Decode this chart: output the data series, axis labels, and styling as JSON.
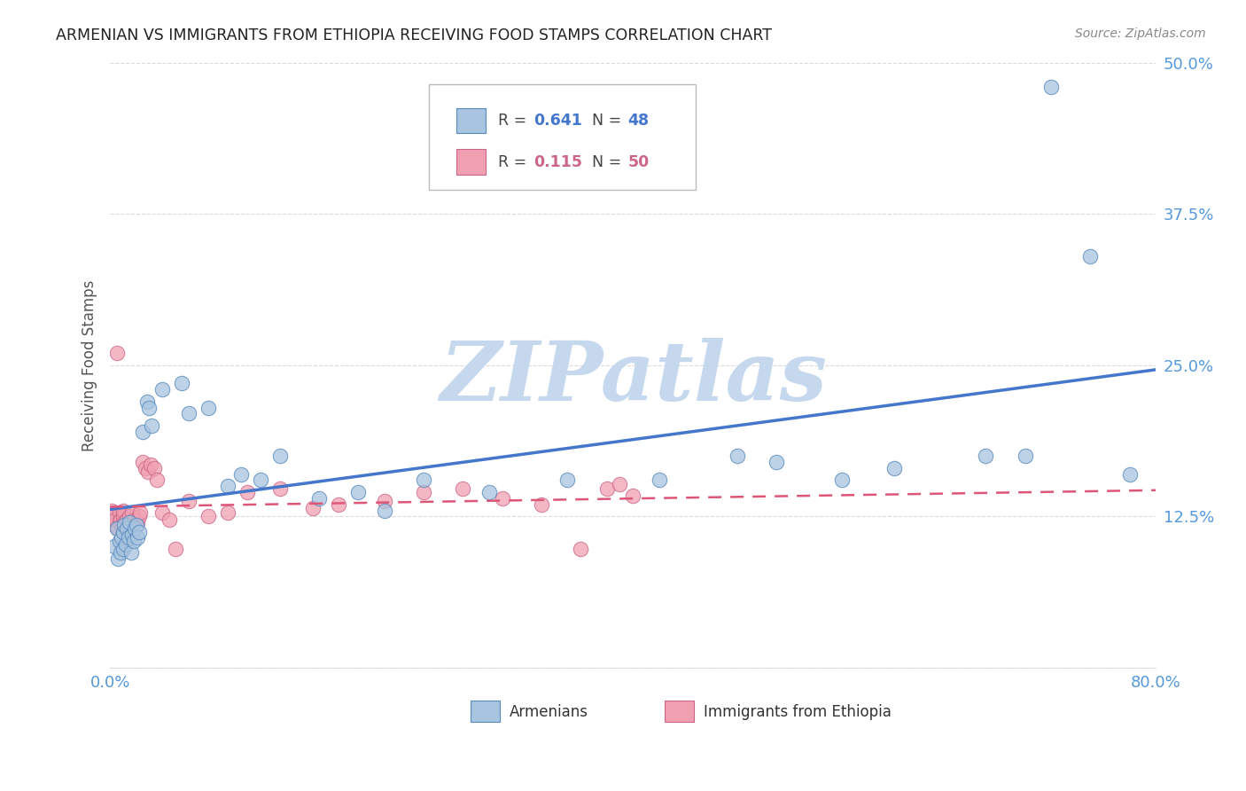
{
  "title": "ARMENIAN VS IMMIGRANTS FROM ETHIOPIA RECEIVING FOOD STAMPS CORRELATION CHART",
  "source": "Source: ZipAtlas.com",
  "ylabel": "Receiving Food Stamps",
  "xlim": [
    0.0,
    0.8
  ],
  "ylim": [
    0.0,
    0.5
  ],
  "ytick_positions": [
    0.0,
    0.125,
    0.25,
    0.375,
    0.5
  ],
  "yticklabels": [
    "",
    "12.5%",
    "25.0%",
    "37.5%",
    "50.0%"
  ],
  "xtick_positions": [
    0.0,
    0.1,
    0.2,
    0.3,
    0.4,
    0.5,
    0.6,
    0.7,
    0.8
  ],
  "xticklabels_show": [
    "0.0%",
    "",
    "",
    "",
    "",
    "",
    "",
    "",
    "80.0%"
  ],
  "grid_color": "#cccccc",
  "background_color": "#ffffff",
  "blue_fill": "#a8c4e0",
  "blue_edge": "#5588bb",
  "pink_fill": "#f0a0b0",
  "pink_edge": "#cc6688",
  "blue_line": "#4477cc",
  "pink_line": "#dd5577",
  "tick_color": "#5599dd",
  "watermark_color": "#c5d8ee",
  "armenians_x": [
    0.003,
    0.005,
    0.006,
    0.007,
    0.008,
    0.009,
    0.01,
    0.01,
    0.011,
    0.012,
    0.013,
    0.014,
    0.015,
    0.016,
    0.017,
    0.018,
    0.019,
    0.02,
    0.021,
    0.022,
    0.025,
    0.028,
    0.03,
    0.032,
    0.04,
    0.055,
    0.06,
    0.075,
    0.09,
    0.1,
    0.115,
    0.13,
    0.16,
    0.19,
    0.21,
    0.24,
    0.29,
    0.35,
    0.42,
    0.48,
    0.51,
    0.56,
    0.6,
    0.67,
    0.7,
    0.72,
    0.75,
    0.78
  ],
  "armenians_y": [
    0.1,
    0.115,
    0.09,
    0.105,
    0.095,
    0.108,
    0.112,
    0.098,
    0.118,
    0.102,
    0.115,
    0.108,
    0.12,
    0.095,
    0.11,
    0.105,
    0.115,
    0.118,
    0.108,
    0.112,
    0.195,
    0.22,
    0.215,
    0.2,
    0.23,
    0.235,
    0.21,
    0.215,
    0.15,
    0.16,
    0.155,
    0.175,
    0.14,
    0.145,
    0.13,
    0.155,
    0.145,
    0.155,
    0.155,
    0.175,
    0.17,
    0.155,
    0.165,
    0.175,
    0.175,
    0.48,
    0.34,
    0.16
  ],
  "ethiopia_x": [
    0.001,
    0.002,
    0.003,
    0.004,
    0.005,
    0.006,
    0.007,
    0.007,
    0.008,
    0.009,
    0.01,
    0.01,
    0.011,
    0.012,
    0.013,
    0.014,
    0.015,
    0.016,
    0.017,
    0.018,
    0.019,
    0.02,
    0.021,
    0.022,
    0.023,
    0.025,
    0.027,
    0.029,
    0.031,
    0.034,
    0.036,
    0.04,
    0.045,
    0.05,
    0.06,
    0.075,
    0.09,
    0.105,
    0.13,
    0.155,
    0.175,
    0.21,
    0.24,
    0.27,
    0.3,
    0.33,
    0.36,
    0.38,
    0.39,
    0.4
  ],
  "ethiopia_y": [
    0.13,
    0.125,
    0.118,
    0.122,
    0.26,
    0.115,
    0.128,
    0.12,
    0.122,
    0.118,
    0.125,
    0.13,
    0.12,
    0.115,
    0.122,
    0.118,
    0.125,
    0.12,
    0.128,
    0.115,
    0.122,
    0.118,
    0.12,
    0.125,
    0.128,
    0.17,
    0.165,
    0.162,
    0.168,
    0.165,
    0.155,
    0.128,
    0.122,
    0.098,
    0.138,
    0.125,
    0.128,
    0.145,
    0.148,
    0.132,
    0.135,
    0.138,
    0.145,
    0.148,
    0.14,
    0.135,
    0.098,
    0.148,
    0.152,
    0.142
  ]
}
